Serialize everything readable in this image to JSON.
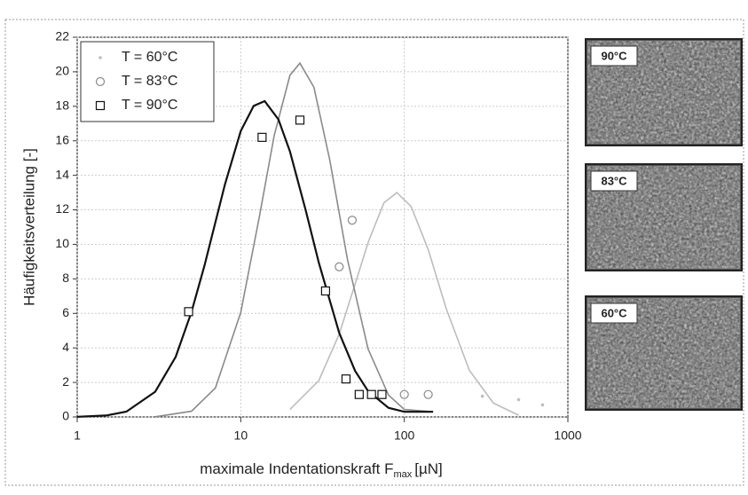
{
  "chart_data": {
    "type": "scatter",
    "xscale": "log",
    "grid": true,
    "legend": "upper left",
    "xlabel": {
      "text": "maximale Indentationskraft F",
      "sub": "max",
      "unit": "[µN]"
    },
    "ylabel": "Häufigkeitsverteilung [-]",
    "xlim": [
      1,
      1000
    ],
    "xticks": [
      1,
      10,
      100,
      1000
    ],
    "ylim": [
      0,
      22
    ],
    "yticks": [
      0,
      2,
      4,
      6,
      8,
      10,
      12,
      14,
      16,
      18,
      20,
      22
    ],
    "series": [
      {
        "name": "T = 60°C",
        "color": "#bdbdbd",
        "marker": "dot",
        "x": [
          300,
          500,
          700
        ],
        "values": [
          1.2,
          1.0,
          0.7
        ],
        "fit_x": [
          20,
          30,
          40,
          50,
          60,
          75,
          90,
          110,
          140,
          180,
          250,
          350,
          500
        ],
        "fit_values": [
          0.43,
          2.1,
          4.8,
          7.7,
          10.1,
          12.4,
          13,
          12.2,
          9.7,
          6.3,
          2.7,
          0.8,
          0.1
        ]
      },
      {
        "name": "T = 83°C",
        "color": "#8a8a8a",
        "marker": "circle",
        "x": [
          40,
          48,
          100,
          140
        ],
        "values": [
          8.7,
          11.4,
          1.3,
          1.3
        ],
        "fit_x": [
          3,
          5,
          7,
          10,
          13,
          16,
          20,
          23,
          28,
          35,
          45,
          60,
          80,
          100,
          150
        ],
        "fit_values": [
          0.01,
          0.33,
          1.68,
          6.05,
          11.6,
          16.3,
          19.8,
          20.5,
          19.1,
          14.9,
          9.1,
          3.94,
          1.27,
          0.43,
          0.3
        ]
      },
      {
        "name": "T = 90°C",
        "color": "#111111",
        "marker": "square",
        "x": [
          4.8,
          13.5,
          23,
          33,
          44,
          53,
          63,
          73
        ],
        "values": [
          6.1,
          16.2,
          17.2,
          7.3,
          2.2,
          1.3,
          1.3,
          1.3
        ],
        "fit_x": [
          1,
          1.5,
          2,
          3,
          4,
          5,
          6,
          8,
          10,
          12,
          14,
          17,
          20,
          25,
          30,
          40,
          50,
          60,
          80,
          100,
          150
        ],
        "fit_values": [
          0.01,
          0.08,
          0.31,
          1.46,
          3.48,
          6.08,
          8.76,
          13.47,
          16.56,
          18.02,
          18.3,
          17.24,
          15.38,
          11.94,
          8.94,
          4.87,
          2.67,
          1.5,
          0.53,
          0.3,
          0.3
        ]
      }
    ],
    "images": [
      {
        "label": "90°C"
      },
      {
        "label": "83°C"
      },
      {
        "label": "60°C"
      }
    ]
  }
}
